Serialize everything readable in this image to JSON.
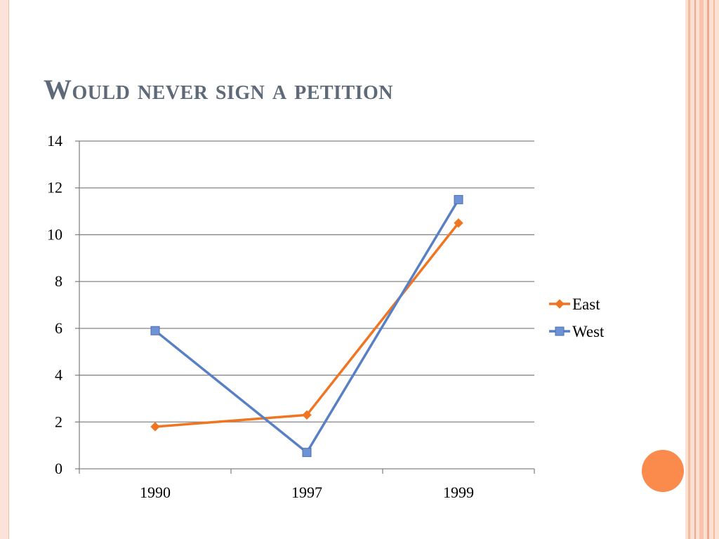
{
  "slide": {
    "title": "Would never sign a petition"
  },
  "colors": {
    "east": "#f07522",
    "west": "#5a80c4",
    "west_marker": "#6e92d6",
    "gridline": "#858585",
    "accent_circle": "#fb8a4d",
    "title": "#5f6a78"
  },
  "chart_data": {
    "type": "line",
    "title": "",
    "xlabel": "",
    "ylabel": "",
    "categories": [
      "1990",
      "1997",
      "1999"
    ],
    "ylim": [
      0,
      14
    ],
    "y_ticks": [
      "0",
      "2",
      "4",
      "6",
      "8",
      "10",
      "12",
      "14"
    ],
    "grid": true,
    "legend_position": "right",
    "series": [
      {
        "name": "East",
        "values": [
          1.8,
          2.3,
          10.5
        ],
        "marker": "diamond"
      },
      {
        "name": "West",
        "values": [
          5.9,
          0.7,
          11.5
        ],
        "marker": "square"
      }
    ]
  }
}
